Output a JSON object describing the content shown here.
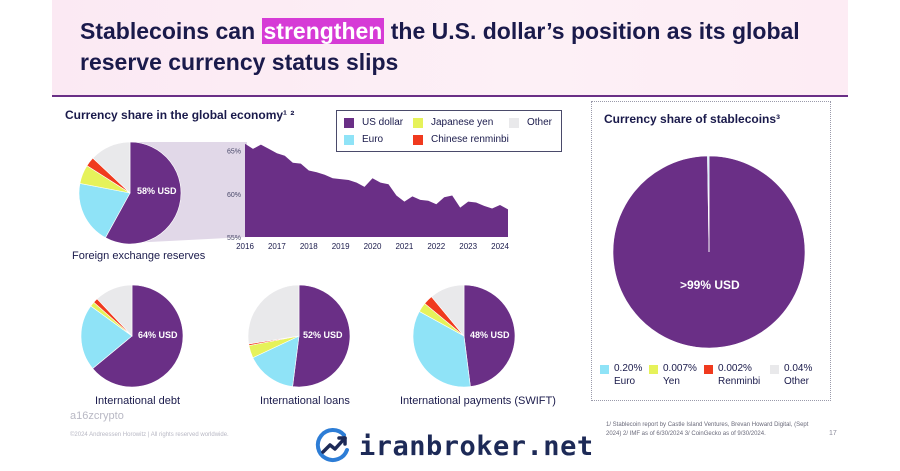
{
  "title": {
    "part1": "Stablecoins can ",
    "highlight": "strengthen",
    "part2": " the U.S. dollar’s position as its global reserve currency status slips"
  },
  "colors": {
    "usd": "#6a2f86",
    "euro": "#8fe3f7",
    "yen": "#e6f25a",
    "rmb": "#f03a1e",
    "other": "#e9e9eb"
  },
  "left_panel": {
    "heading": "Currency share in the global economy¹ ²"
  },
  "legend": [
    {
      "label": "US dollar",
      "key": "usd"
    },
    {
      "label": "Japanese yen",
      "key": "yen"
    },
    {
      "label": "Other",
      "key": "other"
    },
    {
      "label": "Euro",
      "key": "euro"
    },
    {
      "label": "Chinese renminbi",
      "key": "rmb"
    }
  ],
  "right_panel": {
    "heading": "Currency share of stablecoins³"
  },
  "stable_legend": [
    {
      "value": "0.20%",
      "name": "Euro",
      "key": "euro"
    },
    {
      "value": "0.007%",
      "name": "Yen",
      "key": "yen"
    },
    {
      "value": "0.002%",
      "name": "Renminbi",
      "key": "rmb"
    },
    {
      "value": "0.04%",
      "name": "Other",
      "key": "other"
    }
  ],
  "chart_data": [
    {
      "type": "pie",
      "caption": "Foreign exchange reserves",
      "center_label": "58% USD",
      "slices": [
        {
          "key": "usd",
          "value": 58
        },
        {
          "key": "euro",
          "value": 20
        },
        {
          "key": "yen",
          "value": 6
        },
        {
          "key": "rmb",
          "value": 3
        },
        {
          "key": "other",
          "value": 13
        }
      ]
    },
    {
      "type": "area",
      "series": "US dollar share of foreign exchange reserves",
      "x": [
        2016,
        2016.25,
        2016.5,
        2016.75,
        2017,
        2017.25,
        2017.5,
        2017.75,
        2018,
        2018.25,
        2018.5,
        2018.75,
        2019,
        2019.25,
        2019.5,
        2019.75,
        2020,
        2020.25,
        2020.5,
        2020.75,
        2021,
        2021.25,
        2021.5,
        2021.75,
        2022,
        2022.25,
        2022.5,
        2022.75,
        2023,
        2023.25,
        2023.5,
        2023.75,
        2024,
        2024.25
      ],
      "values": [
        65.8,
        65.2,
        65.7,
        65.2,
        64.7,
        64.4,
        63.6,
        63.5,
        62.7,
        62.5,
        62.2,
        61.8,
        61.7,
        61.6,
        61.3,
        60.8,
        61.8,
        61.3,
        61.1,
        59.8,
        59.1,
        59.7,
        59.3,
        59.2,
        58.8,
        59.6,
        59.8,
        58.4,
        59.1,
        59.0,
        58.6,
        58.3,
        58.7,
        58.2
      ],
      "yticks": [
        "65%",
        "60%",
        "55%"
      ],
      "ylim": [
        55,
        66
      ],
      "xticks": [
        "2016",
        "2017",
        "2018",
        "2019",
        "2020",
        "2021",
        "2022",
        "2023",
        "2024"
      ]
    },
    {
      "type": "pie",
      "caption": "International debt",
      "center_label": "64% USD",
      "slices": [
        {
          "key": "usd",
          "value": 64
        },
        {
          "key": "euro",
          "value": 21
        },
        {
          "key": "yen",
          "value": 1.5
        },
        {
          "key": "rmb",
          "value": 1.5
        },
        {
          "key": "other",
          "value": 12
        }
      ]
    },
    {
      "type": "pie",
      "caption": "International loans",
      "center_label": "52% USD",
      "slices": [
        {
          "key": "usd",
          "value": 52
        },
        {
          "key": "euro",
          "value": 16
        },
        {
          "key": "yen",
          "value": 4
        },
        {
          "key": "rmb",
          "value": 0.5
        },
        {
          "key": "other",
          "value": 27.5
        }
      ]
    },
    {
      "type": "pie",
      "caption": "International payments (SWIFT)",
      "center_label": "48% USD",
      "slices": [
        {
          "key": "usd",
          "value": 48
        },
        {
          "key": "euro",
          "value": 35
        },
        {
          "key": "yen",
          "value": 3
        },
        {
          "key": "rmb",
          "value": 3
        },
        {
          "key": "other",
          "value": 11
        }
      ]
    },
    {
      "type": "pie",
      "caption": "Currency share of stablecoins",
      "center_label": ">99% USD",
      "slices": [
        {
          "key": "usd",
          "value": 99.751
        },
        {
          "key": "euro",
          "value": 0.2
        },
        {
          "key": "yen",
          "value": 0.007
        },
        {
          "key": "rmb",
          "value": 0.002
        },
        {
          "key": "other",
          "value": 0.04
        }
      ]
    }
  ],
  "footer": {
    "brand": "a16zcrypto",
    "copyright": "©2024 Andreessen Horowitz | All rights reserved worldwide.",
    "footnote": "1/ Stablecoin report by Castle Island Ventures, Brevan Howard Digital, (Sept 2024) 2/ IMF as of 6/30/2024 3/ CoinGecko as of 9/30/2024.",
    "page": "17"
  },
  "watermark": {
    "text": "iranbroker.net"
  }
}
